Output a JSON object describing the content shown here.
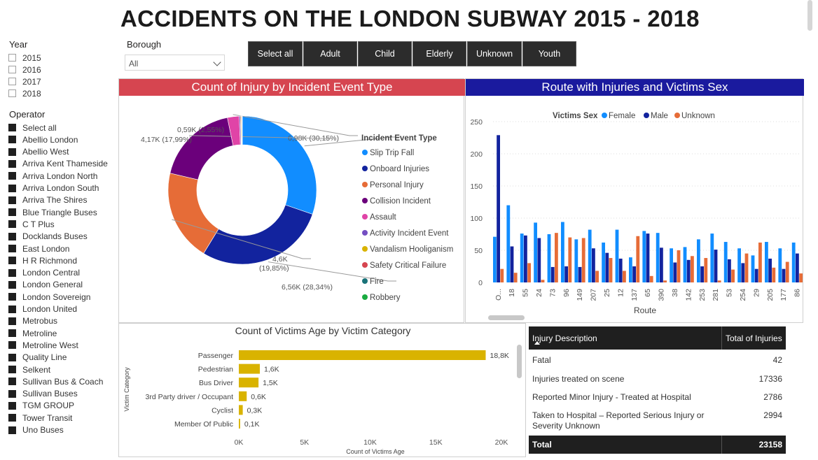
{
  "title": "ACCIDENTS ON THE LONDON SUBWAY 2015 - 2018",
  "year_slicer": {
    "header": "Year",
    "items": [
      "2015",
      "2016",
      "2017",
      "2018"
    ]
  },
  "operator_slicer": {
    "header": "Operator",
    "items": [
      "Select all",
      "Abellio London",
      "Abellio West",
      "Arriva Kent Thameside",
      "Arriva London North",
      "Arriva London South",
      "Arriva The Shires",
      "Blue Triangle Buses",
      "C T Plus",
      "Docklands Buses",
      "East London",
      "H R Richmond",
      "London Central",
      "London General",
      "London Sovereign",
      "London United",
      "Metrobus",
      "Metroline",
      "Metroline West",
      "Quality Line",
      "Selkent",
      "Sullivan Bus & Coach",
      "Sullivan Buses",
      "TGM GROUP",
      "Tower Transit",
      "Uno Buses"
    ]
  },
  "borough_slicer": {
    "header": "Borough",
    "value": "All"
  },
  "category_buttons": [
    "Select all",
    "Adult",
    "Child",
    "Elderly",
    "Unknown",
    "Youth"
  ],
  "colors": {
    "donut_header": "#d64550",
    "route_header": "#1a1a9e",
    "female": "#118dff",
    "male": "#12239e",
    "unknown": "#e66c37",
    "age_bar": "#d9b300"
  },
  "chart_data": [
    {
      "type": "pie",
      "title": "Count of Injury by Incident Event Type",
      "legend_title": "Incident Event Type",
      "legend_position": "right",
      "slices": [
        {
          "name": "Slip Trip Fall",
          "value": 6980,
          "label": "6,98K (30,15%)",
          "color": "#118dff"
        },
        {
          "name": "Onboard Injuries",
          "value": 6560,
          "label": "6,56K (28,34%)",
          "color": "#12239e"
        },
        {
          "name": "Personal Injury",
          "value": 4600,
          "label": "4,6K (19,85%)",
          "color": "#e66c37"
        },
        {
          "name": "Collision Incident",
          "value": 4170,
          "label": "4,17K (17,99%)",
          "color": "#6b007b"
        },
        {
          "name": "Assault",
          "value": 590,
          "label": "0,59K (2,55%)",
          "color": "#e044a7"
        },
        {
          "name": "Activity Incident Event",
          "value": 60,
          "label": "",
          "color": "#744ec2"
        },
        {
          "name": "Vandalism Hooliganism",
          "value": 40,
          "label": "",
          "color": "#d9b300"
        },
        {
          "name": "Safety Critical Failure",
          "value": 30,
          "label": "",
          "color": "#d64550"
        },
        {
          "name": "Fire",
          "value": 15,
          "label": "",
          "color": "#197278"
        },
        {
          "name": "Robbery",
          "value": 10,
          "label": "",
          "color": "#1aab40"
        }
      ]
    },
    {
      "type": "bar",
      "title": "Route with Injuries and Victims Sex",
      "legend_title": "Victims Sex",
      "legend_position": "top",
      "xlabel": "Route",
      "ylabel": "",
      "ylim": [
        0,
        250
      ],
      "yticks": [
        0,
        50,
        100,
        150,
        200,
        250
      ],
      "grid": true,
      "categories": [
        "O...",
        "18",
        "55",
        "24",
        "73",
        "96",
        "149",
        "207",
        "25",
        "12",
        "137",
        "65",
        "390",
        "38",
        "142",
        "253",
        "281",
        "53",
        "254",
        "29",
        "205",
        "177",
        "86"
      ],
      "series": [
        {
          "name": "Female",
          "values": [
            71,
            120,
            76,
            93,
            75,
            94,
            67,
            82,
            62,
            82,
            39,
            80,
            77,
            53,
            55,
            67,
            76,
            63,
            53,
            42,
            63,
            53,
            62
          ]
        },
        {
          "name": "Male",
          "values": [
            229,
            56,
            73,
            69,
            24,
            25,
            24,
            53,
            46,
            37,
            25,
            76,
            54,
            31,
            35,
            25,
            51,
            36,
            30,
            21,
            37,
            21,
            45
          ]
        },
        {
          "name": "Unknown",
          "values": [
            21,
            15,
            30,
            4,
            77,
            70,
            69,
            18,
            38,
            18,
            72,
            10,
            3,
            50,
            41,
            38,
            3,
            20,
            45,
            62,
            23,
            32,
            14
          ]
        }
      ]
    },
    {
      "type": "bar",
      "orientation": "horizontal",
      "title": "Count of Victims Age by Victim Category",
      "xlabel": "Count of Victims Age",
      "ylabel": "Victim Category",
      "xlim": [
        0,
        20000
      ],
      "xticks": [
        "0K",
        "5K",
        "10K",
        "15K",
        "20K"
      ],
      "categories": [
        "Passenger",
        "Pedestrian",
        "Bus Driver",
        "3rd Party driver / Occupant",
        "Cyclist",
        "Member Of Public"
      ],
      "values": [
        18800,
        1600,
        1500,
        600,
        300,
        100
      ],
      "data_labels": [
        "18,8K",
        "1,6K",
        "1,5K",
        "0,6K",
        "0,3K",
        "0,1K"
      ]
    },
    {
      "type": "table",
      "columns": [
        "Injury Description",
        "Total of Injuries"
      ],
      "rows": [
        [
          "Fatal",
          "42"
        ],
        [
          "Injuries treated on scene",
          "17336"
        ],
        [
          "Reported Minor Injury - Treated at Hospital",
          "2786"
        ],
        [
          "Taken to Hospital – Reported Serious Injury or Severity Unknown",
          "2994"
        ]
      ],
      "total": [
        "Total",
        "23158"
      ]
    }
  ]
}
